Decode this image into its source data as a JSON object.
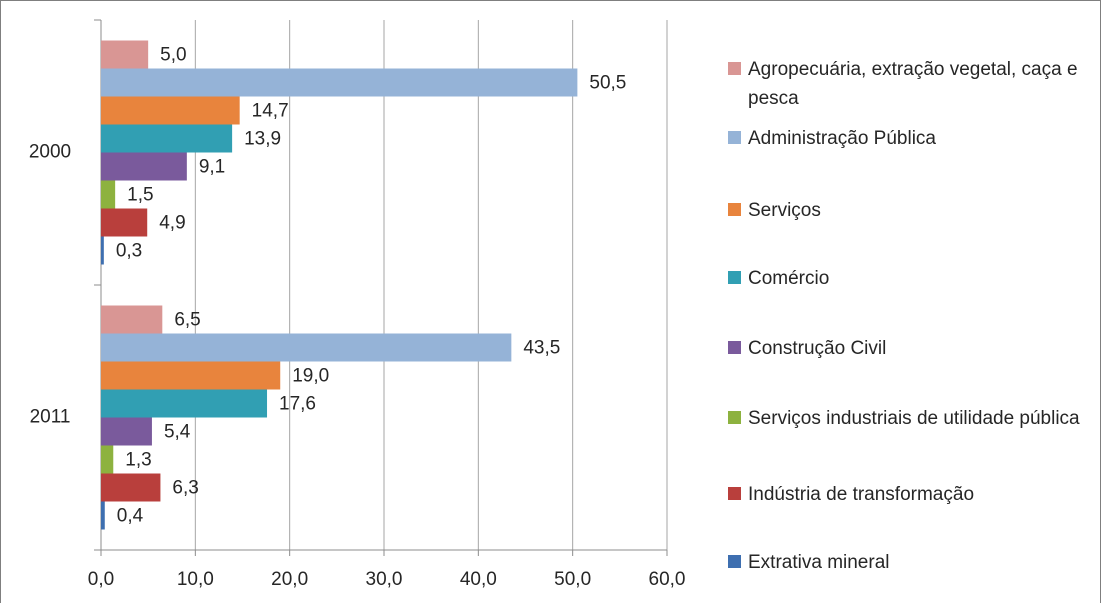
{
  "chart_data": {
    "type": "hbar",
    "categories": [
      "2000",
      "2011"
    ],
    "series": [
      {
        "name": "Agropecuária, extração vegetal, caça e pesca",
        "color": "#d99694",
        "values": [
          5.0,
          6.5
        ],
        "value_labels": [
          "5,0",
          "6,5"
        ]
      },
      {
        "name": "Administração Pública",
        "color": "#95b3d7",
        "values": [
          50.5,
          43.5
        ],
        "value_labels": [
          "50,5",
          "43,5"
        ]
      },
      {
        "name": "Serviços",
        "color": "#e8843d",
        "values": [
          14.7,
          19.0
        ],
        "value_labels": [
          "14,7",
          "19,0"
        ]
      },
      {
        "name": "Comércio",
        "color": "#319fb3",
        "values": [
          13.9,
          17.6
        ],
        "value_labels": [
          "13,9",
          "17,6"
        ]
      },
      {
        "name": "Construção Civil",
        "color": "#7a5a9c",
        "values": [
          9.1,
          5.4
        ],
        "value_labels": [
          "9,1",
          "5,4"
        ]
      },
      {
        "name": "Serviços industriais de utilidade pública",
        "color": "#8db23f",
        "values": [
          1.5,
          1.3
        ],
        "value_labels": [
          "1,5",
          "1,3"
        ]
      },
      {
        "name": "Indústria de transformação",
        "color": "#b93f3c",
        "values": [
          4.9,
          6.3
        ],
        "value_labels": [
          "4,9",
          "6,3"
        ]
      },
      {
        "name": "Extrativa mineral",
        "color": "#3e6fb0",
        "values": [
          0.3,
          0.4
        ],
        "value_labels": [
          "0,3",
          "0,4"
        ]
      }
    ],
    "xlim": [
      0,
      60
    ],
    "xticks": [
      {
        "value": 0,
        "label": "0,0"
      },
      {
        "value": 10,
        "label": "10,0"
      },
      {
        "value": 20,
        "label": "20,0"
      },
      {
        "value": 30,
        "label": "30,0"
      },
      {
        "value": 40,
        "label": "40,0"
      },
      {
        "value": 50,
        "label": "50,0"
      },
      {
        "value": 60,
        "label": "60,0"
      }
    ],
    "grid": true
  }
}
